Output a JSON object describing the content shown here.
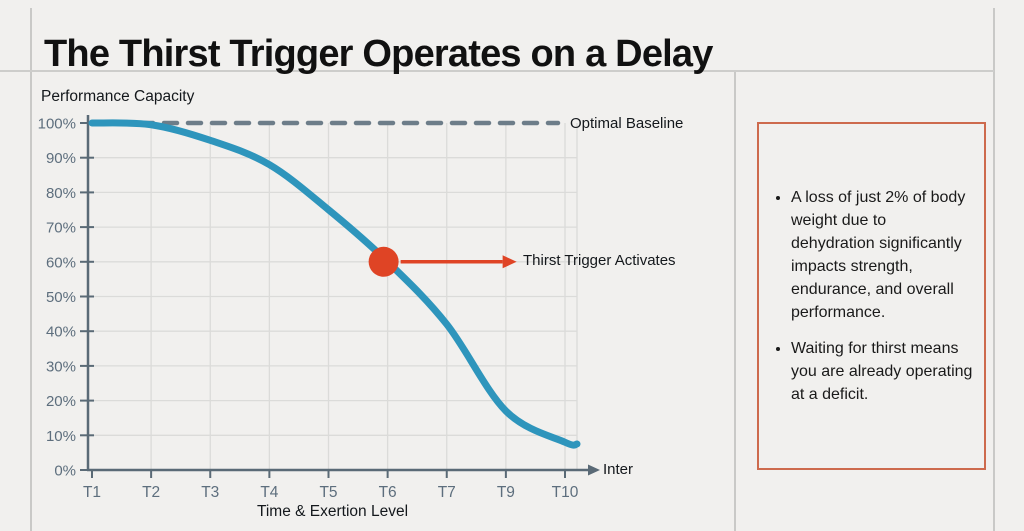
{
  "header": {
    "title": "The Thirst Trigger Operates on a Delay"
  },
  "chart_data": {
    "type": "line",
    "ylabel": "Performance Capacity",
    "xlabel": "Time & Exertion Level",
    "x_axis_arrow_label": "Inter",
    "categories": [
      "T1",
      "T2",
      "T3",
      "T4",
      "T5",
      "T6",
      "T7",
      "T9",
      "T10"
    ],
    "values": [
      100,
      99.5,
      95,
      88,
      75,
      60,
      42,
      17,
      8
    ],
    "y_ticks": [
      "100%",
      "90%",
      "80%",
      "70%",
      "60%",
      "50%",
      "40%",
      "30%",
      "20%",
      "10%",
      "0%"
    ],
    "ylim": [
      0,
      100
    ],
    "grid": true,
    "baseline": {
      "value": 100,
      "label": "Optimal Baseline",
      "style": "dashed"
    },
    "annotation": {
      "category": "T6",
      "value": 60,
      "label": "Thirst Trigger Activates"
    },
    "colors": {
      "line": "#2e95bc",
      "annotation": "#df4425",
      "axis": "#5a6a76",
      "grid": "#dbdbd9",
      "tick_label": "#5d6e7d",
      "baseline": "#6d7d89"
    }
  },
  "panel": {
    "border_color": "#cd6a4d",
    "bullets": [
      "A loss of just 2% of body weight due to dehydration significantly impacts strength, endurance, and overall performance.",
      "Waiting for thirst means you are already operating at a deficit."
    ]
  }
}
